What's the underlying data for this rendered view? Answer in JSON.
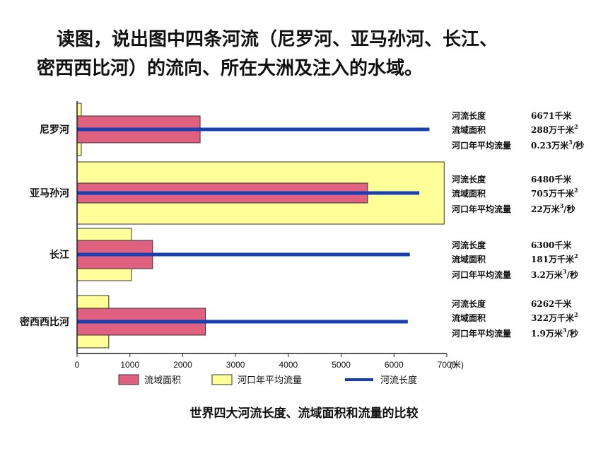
{
  "question": {
    "line1": "读图，说出图中四条河流（尼罗河、亚马孙河、长江、",
    "line2": "密西西比河）的流向、所在大洲及注入的水域。"
  },
  "colors": {
    "area": "#e06080",
    "flow": "#ffff99",
    "length": "#1a3fb0",
    "outline": "#333333"
  },
  "chart_data": {
    "type": "bar",
    "title": "世界四大河流长度、流域面积和流量的比较",
    "x_unit": "(米)",
    "xlim": [
      0,
      7000
    ],
    "xticks": [
      "0",
      "1000",
      "2000",
      "3000",
      "4000",
      "5000",
      "6000",
      "7000"
    ],
    "categories": [
      "尼罗河",
      "亚马孙河",
      "长江",
      "密西西比河"
    ],
    "series": [
      {
        "name": "流域面积",
        "values": [
          2330,
          5500,
          1430,
          2430
        ]
      },
      {
        "name": "河口年平均流量",
        "values": [
          80,
          6950,
          1030,
          600
        ]
      },
      {
        "name": "河流长度",
        "values": [
          6671,
          6480,
          6300,
          6262
        ]
      }
    ],
    "legend": [
      "流域面积",
      "河口年平均流量",
      "河流长度"
    ],
    "info": [
      {
        "len_label": "河流长度",
        "len_value": "6671千米",
        "area_label": "流域面积",
        "area_value": "288万千米",
        "flow_label": "河口年平均流量",
        "flow_value": "0.23万米",
        "flow_unit": "/秒"
      },
      {
        "len_label": "河流长度",
        "len_value": "6480千米",
        "area_label": "流域面积",
        "area_value": "705万千米",
        "flow_label": "河口年平均流量",
        "flow_value": "22万米",
        "flow_unit": "/秒"
      },
      {
        "len_label": "河流长度",
        "len_value": "6300千米",
        "area_label": "流域面积",
        "area_value": "181万千米",
        "flow_label": "河口年平均流量",
        "flow_value": "3.2万米",
        "flow_unit": "/秒"
      },
      {
        "len_label": "河流长度",
        "len_value": "6262千米",
        "area_label": "流域面积",
        "area_value": "322万千米",
        "flow_label": "河口年平均流量",
        "flow_value": "1.9万米",
        "flow_unit": "/秒"
      }
    ],
    "sup2": "2",
    "sup3": "3"
  }
}
